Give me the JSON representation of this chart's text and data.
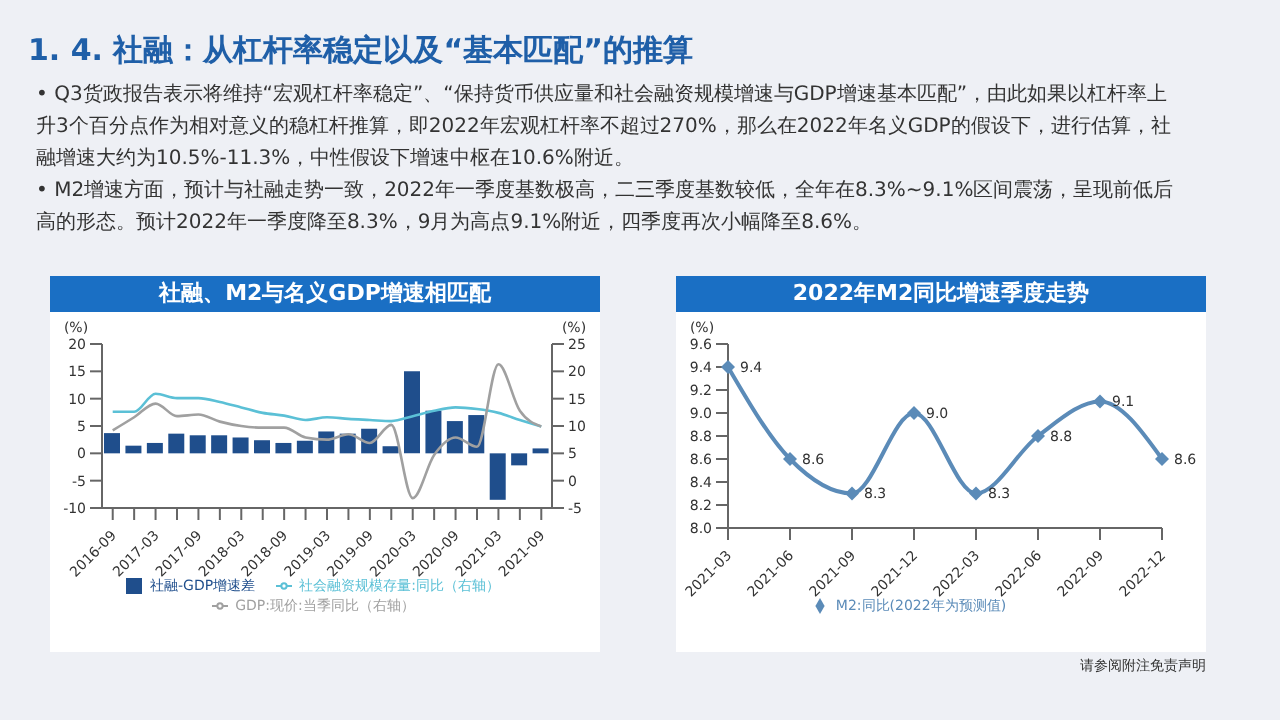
{
  "chart_data": [
    {
      "type": "other",
      "title": "1. 4. 社融：从杠杆率稳定以及“基本匹配”的推算",
      "annotations": [
        "• Q3货政报告表示将维持“宏观杠杆率稳定”、“保持货币供应量和社会融资规模增速与GDP增速基本匹配”，由此如果以杠杆率上升3个百分点作为相对意义的稳杠杆推算，即2022年宏观杠杆率不超过270%，那么在2022年名义GDP的假设下，进行估算，社融增速大约为10.5%-11.3%，中性假设下增速中枢在10.6%附近。",
        "• M2增速方面，预计与社融走势一致，2022年一季度基数极高，二三季度基数较低，全年在8.3%~9.1%区间震荡，呈现前低后高的形态。预计2022年一季度降至8.3%，9月为高点9.1%附近，四季度再次小幅降至8.6%。"
      ]
    },
    {
      "type": "bar",
      "title": "社融、M2与名义GDP增速相匹配",
      "ylabel": "(%)",
      "y2label": "(%)",
      "categories": [
        "2016-09",
        null,
        "2017-03",
        null,
        "2017-09",
        null,
        "2018-03",
        null,
        "2018-09",
        null,
        "2019-03",
        null,
        "2019-09",
        null,
        "2020-03",
        null,
        "2020-09",
        null,
        "2021-03",
        null,
        "2021-09"
      ],
      "series": [
        {
          "name": "社融-GDP增速差",
          "type": "bar",
          "color": "#1f4e8c",
          "values": [
            3.7,
            1.4,
            1.9,
            3.6,
            3.3,
            3.3,
            2.9,
            2.4,
            1.9,
            2.3,
            4,
            3.6,
            4.5,
            1.3,
            15,
            7.8,
            5.9,
            7,
            -8.5,
            -2.2,
            0.9
          ]
        },
        {
          "name": "社会融资规模存量:同比（右轴）",
          "type": "line",
          "axis": "y2",
          "color": "#5bc0d6",
          "values": [
            12.6,
            12.6,
            15.9,
            15.1,
            15.1,
            14.4,
            13.4,
            12.4,
            11.9,
            11.1,
            11.6,
            11.3,
            11.1,
            10.9,
            11.8,
            12.8,
            13.4,
            13.1,
            12.4,
            11.1,
            9.9
          ]
        },
        {
          "name": "GDP:现价:当季同比（右轴）",
          "type": "line",
          "axis": "y2",
          "color": "#a0a0a0",
          "values": [
            9.2,
            11.6,
            14.1,
            11.8,
            12.1,
            10.8,
            10,
            9.7,
            9.7,
            7.9,
            7.5,
            8.5,
            6.9,
            10.2,
            -3.2,
            4.7,
            7.9,
            6.2,
            21.3,
            12.8,
            9.9
          ]
        }
      ],
      "ylim": [
        -10,
        20
      ],
      "yticks": [
        -10,
        -5,
        0,
        5,
        10,
        15,
        20
      ],
      "y2lim": [
        -5,
        25
      ],
      "y2ticks": [
        -5,
        0,
        5,
        10,
        15,
        20,
        25
      ],
      "legend": "bottom"
    },
    {
      "type": "line",
      "title": "2022年M2同比增速季度走势",
      "ylabel": "(%)",
      "categories": [
        "2021-03",
        "2021-06",
        "2021-09",
        "2021-12",
        "2022-03",
        "2022-06",
        "2022-09",
        "2022-12"
      ],
      "series": [
        {
          "name": "M2:同比(2022年为预测值)",
          "color": "#5b8bb8",
          "values": [
            9.4,
            8.6,
            8.3,
            9.0,
            8.3,
            8.8,
            9.1,
            8.6
          ],
          "value_labels": [
            "9.4",
            "8.6",
            "8.3",
            "9.0",
            "8.3",
            "8.8",
            "9.1",
            "8.6"
          ]
        }
      ],
      "ylim": [
        8,
        9.6
      ],
      "yticks": [
        {
          "value": 8,
          "label": "8.0"
        },
        8.2,
        8.4,
        8.6,
        8.8,
        {
          "value": 9,
          "label": "9.0"
        },
        9.2,
        9.4,
        9.6
      ],
      "marker": "diamond",
      "legend": "bottom",
      "annotations": [
        "请参阅附注免责声明"
      ]
    }
  ]
}
